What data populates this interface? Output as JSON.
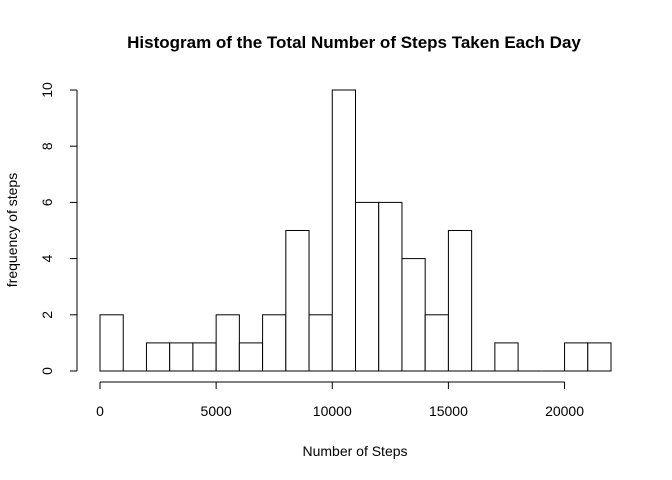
{
  "chart_data": {
    "type": "bar",
    "title": "Histogram of the Total Number of Steps Taken Each Day",
    "xlabel": "Number of Steps",
    "ylabel": "frequency of steps",
    "bins": [
      {
        "start": 0,
        "end": 1000,
        "count": 2
      },
      {
        "start": 1000,
        "end": 2000,
        "count": 0
      },
      {
        "start": 2000,
        "end": 3000,
        "count": 1
      },
      {
        "start": 3000,
        "end": 4000,
        "count": 1
      },
      {
        "start": 4000,
        "end": 5000,
        "count": 1
      },
      {
        "start": 5000,
        "end": 6000,
        "count": 2
      },
      {
        "start": 6000,
        "end": 7000,
        "count": 1
      },
      {
        "start": 7000,
        "end": 8000,
        "count": 2
      },
      {
        "start": 8000,
        "end": 9000,
        "count": 5
      },
      {
        "start": 9000,
        "end": 10000,
        "count": 2
      },
      {
        "start": 10000,
        "end": 11000,
        "count": 10
      },
      {
        "start": 11000,
        "end": 12000,
        "count": 6
      },
      {
        "start": 12000,
        "end": 13000,
        "count": 6
      },
      {
        "start": 13000,
        "end": 14000,
        "count": 4
      },
      {
        "start": 14000,
        "end": 15000,
        "count": 2
      },
      {
        "start": 15000,
        "end": 16000,
        "count": 5
      },
      {
        "start": 16000,
        "end": 17000,
        "count": 0
      },
      {
        "start": 17000,
        "end": 18000,
        "count": 1
      },
      {
        "start": 18000,
        "end": 19000,
        "count": 0
      },
      {
        "start": 19000,
        "end": 20000,
        "count": 0
      },
      {
        "start": 20000,
        "end": 21000,
        "count": 1
      },
      {
        "start": 21000,
        "end": 22000,
        "count": 1
      }
    ],
    "xlim": [
      0,
      22000
    ],
    "ylim": [
      0,
      10
    ],
    "x_ticks": [
      0,
      5000,
      10000,
      15000,
      20000
    ],
    "y_ticks": [
      0,
      2,
      4,
      6,
      8,
      10
    ],
    "grid": false,
    "colors": {
      "fill": "#ffffff",
      "stroke": "#000000"
    }
  }
}
